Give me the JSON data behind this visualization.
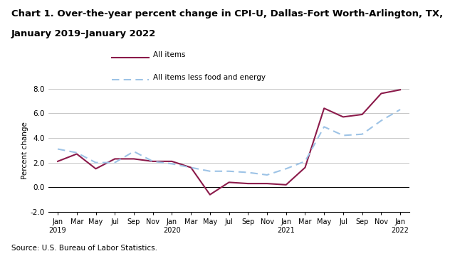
{
  "title_line1": "Chart 1. Over-the-year percent change in CPI-U, Dallas-Fort Worth-Arlington, TX,",
  "title_line2": "January 2019–January 2022",
  "ylabel": "Percent change",
  "source": "Source: U.S. Bureau of Labor Statistics.",
  "ylim": [
    -2.0,
    8.0
  ],
  "yticks": [
    -2.0,
    0.0,
    2.0,
    4.0,
    6.0,
    8.0
  ],
  "ytick_labels": [
    "-2.0",
    "0.0",
    "2.0",
    "4.0",
    "6.0",
    "8.0"
  ],
  "x_labels": [
    "Jan\n2019",
    "Mar",
    "May",
    "Jul",
    "Sep",
    "Nov",
    "Jan\n2020",
    "Mar",
    "May",
    "Jul",
    "Sep",
    "Nov",
    "Jan\n2021",
    "Mar",
    "May",
    "Jul",
    "Sep",
    "Nov",
    "Jan\n2022"
  ],
  "all_items": [
    2.1,
    2.7,
    1.5,
    2.3,
    2.3,
    2.1,
    2.1,
    1.6,
    -0.6,
    0.4,
    0.3,
    0.3,
    0.2,
    1.6,
    6.4,
    5.7,
    5.9,
    7.6,
    7.9
  ],
  "all_items_less": [
    3.1,
    2.8,
    2.0,
    2.0,
    2.9,
    2.1,
    1.9,
    1.6,
    1.3,
    1.3,
    1.2,
    1.0,
    1.5,
    2.1,
    4.9,
    4.2,
    4.3,
    5.4,
    6.3
  ],
  "line1_color": "#8B1A4A",
  "line2_color": "#9DC3E6",
  "line1_label": "All items",
  "line2_label": "All items less food and energy",
  "title_fontsize": 9.5,
  "axis_label_fontsize": 7.5,
  "tick_fontsize": 7.5,
  "legend_fontsize": 7.5,
  "source_fontsize": 7.5,
  "background_color": "#ffffff"
}
